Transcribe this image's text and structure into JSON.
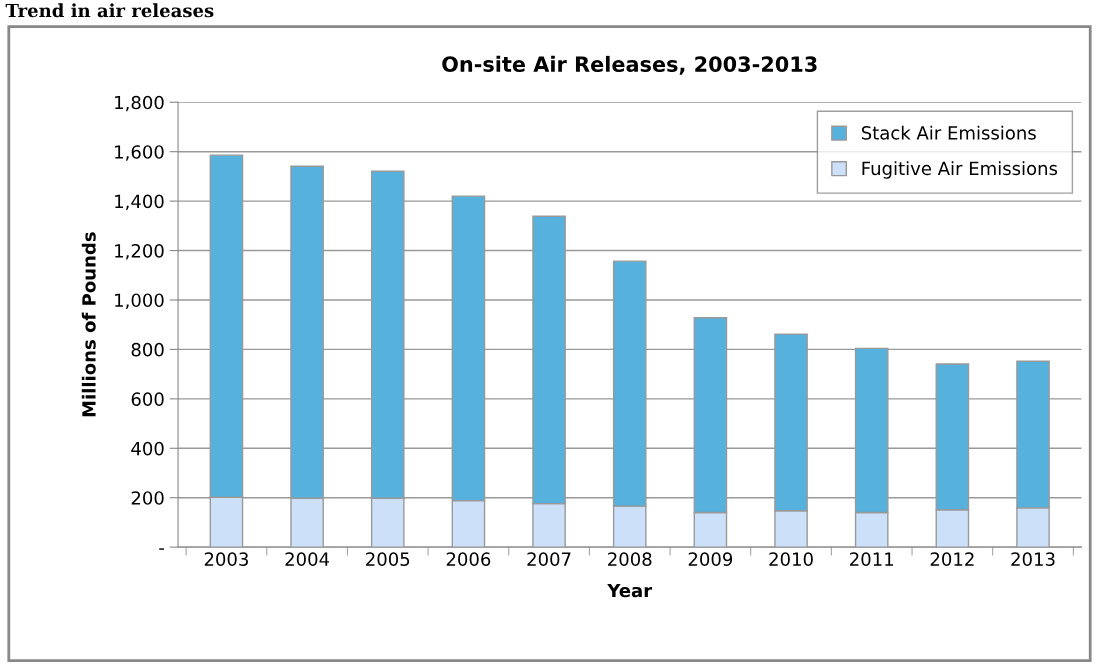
{
  "chart_data": {
    "type": "bar",
    "title": "On-site Air Releases, 2003-2013",
    "xlabel": "Year",
    "ylabel": "Millions of Pounds",
    "annotations": [
      "Trend in air releases"
    ],
    "categories": [
      "2003",
      "2004",
      "2005",
      "2006",
      "2007",
      "2008",
      "2009",
      "2010",
      "2011",
      "2012",
      "2013"
    ],
    "stacked": true,
    "series": [
      {
        "name": "Fugitive Air Emissions",
        "color": "#cce0fa",
        "values": [
          202,
          198,
          198,
          188,
          176,
          166,
          140,
          147,
          140,
          151,
          159
        ]
      },
      {
        "name": "Stack Air Emissions",
        "color": "#56b1dc",
        "values": [
          1384,
          1343,
          1323,
          1232,
          1163,
          991,
          788,
          715,
          664,
          590,
          593
        ]
      }
    ],
    "ylim": [
      0,
      1800
    ],
    "yticks": [
      {
        "value": 0,
        "label": "-"
      },
      200,
      400,
      600,
      800,
      {
        "value": 1000,
        "label": "1,000"
      },
      {
        "value": 1200,
        "label": "1,200"
      },
      {
        "value": 1400,
        "label": "1,400"
      },
      {
        "value": 1600,
        "label": "1,600"
      },
      {
        "value": 1800,
        "label": "1,800"
      }
    ],
    "grid": "y",
    "legend": "top right"
  }
}
